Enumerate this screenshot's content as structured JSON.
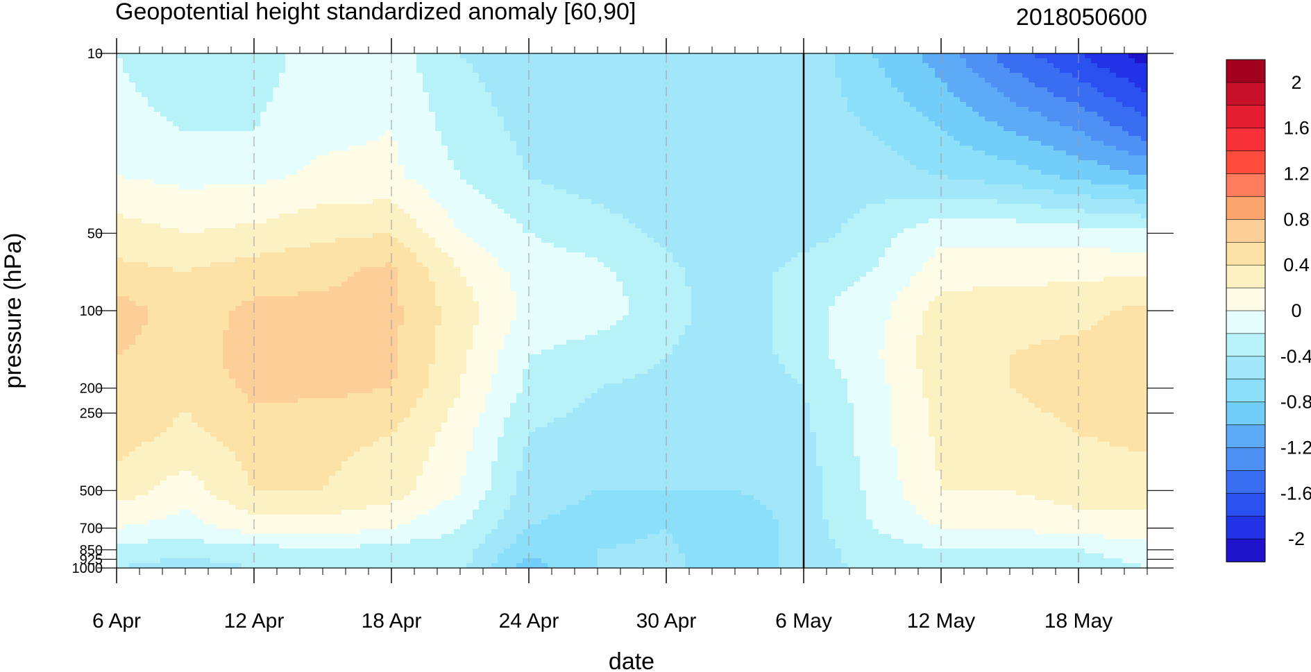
{
  "chart_data": {
    "type": "heatmap",
    "subtype": "filled-contour time-pressure section",
    "title": "Geopotential height standardized anomaly [60,90]",
    "run_label": "2018050600",
    "xlabel": "date",
    "ylabel": "pressure (hPa)",
    "y_scale": "log",
    "y_reversed": true,
    "ylim": [
      1000,
      10
    ],
    "xlim": [
      "2018-04-06",
      "2018-05-21"
    ],
    "x_tick_labels": [
      "6 Apr",
      "12 Apr",
      "18 Apr",
      "24 Apr",
      "30 Apr",
      "6 May",
      "12 May",
      "18 May"
    ],
    "x_tick_dates": [
      "2018-04-06",
      "2018-04-12",
      "2018-04-18",
      "2018-04-24",
      "2018-04-30",
      "2018-05-06",
      "2018-05-12",
      "2018-05-18"
    ],
    "y_tick_labels": [
      "10",
      "50",
      "100",
      "200",
      "250",
      "500",
      "700",
      "850",
      "925",
      "1000"
    ],
    "y_tick_values": [
      10,
      50,
      100,
      200,
      250,
      500,
      700,
      850,
      925,
      1000
    ],
    "vertical_marker_date": "2018-05-06",
    "grid": "dashed vertical lines at labeled dates",
    "colorbar": {
      "placement": "right",
      "label_values": [
        "2",
        "1.6",
        "1.2",
        "0.8",
        "0.4",
        "0",
        "-0.4",
        "-0.8",
        "-1.2",
        "-1.6",
        "-2"
      ],
      "boundaries": [
        -2.2,
        -2.0,
        -1.8,
        -1.6,
        -1.4,
        -1.2,
        -1.0,
        -0.8,
        -0.6,
        -0.4,
        -0.2,
        0.0,
        0.2,
        0.4,
        0.6,
        0.8,
        1.0,
        1.2,
        1.4,
        1.6,
        1.8,
        2.0,
        2.2
      ],
      "colors": [
        "#1f14cc",
        "#2233e6",
        "#2b50f0",
        "#3a6ef2",
        "#4f90f5",
        "#5daaf7",
        "#72cdf9",
        "#8cdff8",
        "#a1e7f9",
        "#b8f2f9",
        "#e6fdfd",
        "#fefce6",
        "#fcf1c3",
        "#fde2a8",
        "#fccf98",
        "#fca56e",
        "#fe7b5e",
        "#ff4c3d",
        "#f7303a",
        "#e41e30",
        "#c8102a",
        "#a3001f"
      ]
    },
    "approximate_field": {
      "levels_hpa": [
        10,
        20,
        30,
        50,
        70,
        100,
        150,
        200,
        300,
        500,
        700,
        850,
        1000
      ],
      "dates": [
        "2018-04-06",
        "2018-04-09",
        "2018-04-12",
        "2018-04-15",
        "2018-04-18",
        "2018-04-21",
        "2018-04-24",
        "2018-04-27",
        "2018-04-30",
        "2018-05-03",
        "2018-05-06",
        "2018-05-09",
        "2018-05-12",
        "2018-05-15",
        "2018-05-18",
        "2018-05-21"
      ],
      "values": [
        [
          -0.2,
          -0.3,
          -0.3,
          -0.1,
          -0.1,
          -0.4,
          -0.5,
          -0.5,
          -0.5,
          -0.5,
          -0.45,
          -0.8,
          -1.1,
          -1.5,
          -1.8,
          -2.1
        ],
        [
          -0.15,
          -0.2,
          -0.2,
          -0.05,
          0.0,
          -0.3,
          -0.45,
          -0.5,
          -0.5,
          -0.6,
          -0.5,
          -0.6,
          -0.8,
          -1.0,
          -1.2,
          -1.5
        ],
        [
          0.0,
          -0.05,
          -0.05,
          0.05,
          0.05,
          -0.2,
          -0.4,
          -0.5,
          -0.55,
          -0.6,
          -0.5,
          -0.5,
          -0.6,
          -0.7,
          -0.85,
          -1.0
        ],
        [
          0.3,
          0.2,
          0.25,
          0.35,
          0.4,
          0.0,
          -0.2,
          -0.3,
          -0.45,
          -0.55,
          -0.5,
          -0.3,
          -0.05,
          -0.05,
          -0.1,
          -0.15
        ],
        [
          0.45,
          0.4,
          0.5,
          0.55,
          0.65,
          0.2,
          -0.1,
          -0.15,
          -0.35,
          -0.55,
          -0.3,
          -0.2,
          0.1,
          0.1,
          0.15,
          0.15
        ],
        [
          0.7,
          0.5,
          0.65,
          0.65,
          0.65,
          0.3,
          -0.05,
          -0.1,
          -0.3,
          -0.55,
          -0.25,
          -0.1,
          0.3,
          0.35,
          0.35,
          0.45
        ],
        [
          0.6,
          0.5,
          0.7,
          0.7,
          0.65,
          0.25,
          -0.2,
          -0.3,
          -0.4,
          -0.55,
          -0.3,
          -0.05,
          0.35,
          0.4,
          0.45,
          0.5
        ],
        [
          0.55,
          0.45,
          0.65,
          0.65,
          0.6,
          0.2,
          -0.25,
          -0.4,
          -0.45,
          -0.55,
          -0.4,
          -0.1,
          0.3,
          0.4,
          0.5,
          0.55
        ],
        [
          0.5,
          0.35,
          0.5,
          0.45,
          0.4,
          0.1,
          -0.4,
          -0.5,
          -0.55,
          -0.55,
          -0.45,
          -0.1,
          0.25,
          0.3,
          0.4,
          0.45
        ],
        [
          0.3,
          0.1,
          0.4,
          0.4,
          0.3,
          0.0,
          -0.5,
          -0.6,
          -0.6,
          -0.6,
          -0.5,
          -0.15,
          0.2,
          0.2,
          0.3,
          0.3
        ],
        [
          0.0,
          -0.1,
          0.1,
          0.1,
          0.0,
          -0.2,
          -0.6,
          -0.7,
          -0.6,
          -0.8,
          -0.5,
          -0.2,
          0.0,
          0.0,
          0.1,
          0.1
        ],
        [
          -0.3,
          -0.3,
          -0.3,
          -0.2,
          -0.3,
          -0.3,
          -0.75,
          -0.6,
          -0.55,
          -0.8,
          -0.5,
          -0.3,
          -0.2,
          -0.2,
          -0.2,
          -0.1
        ],
        [
          -0.4,
          -0.5,
          -0.4,
          -0.35,
          -0.4,
          -0.35,
          -0.9,
          -0.6,
          -0.5,
          -0.8,
          -0.5,
          -0.35,
          -0.3,
          -0.3,
          -0.3,
          -0.2
        ]
      ]
    }
  }
}
